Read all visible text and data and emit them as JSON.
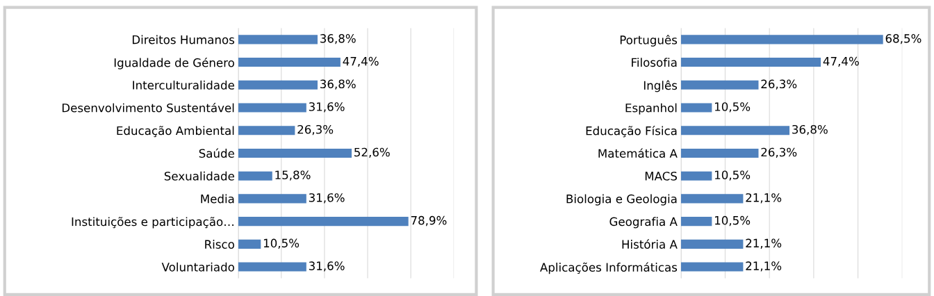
{
  "chart_data": [
    {
      "type": "bar",
      "orientation": "horizontal",
      "categories": [
        "Direitos Humanos",
        "Igualdade de Género",
        "Interculturalidade",
        "Desenvolvimento Sustentável",
        "Educação Ambiental",
        "Saúde",
        "Sexualidade",
        "Media",
        "Instituições e participação…",
        "Risco",
        "Voluntariado"
      ],
      "values": [
        36.8,
        47.4,
        36.8,
        31.6,
        26.3,
        52.6,
        15.8,
        31.6,
        78.9,
        10.5,
        31.6
      ],
      "value_labels": [
        "36,8%",
        "47,4%",
        "36,8%",
        "31,6%",
        "26,3%",
        "52,6%",
        "15,8%",
        "31,6%",
        "78,9%",
        "10,5%",
        "31,6%"
      ],
      "color": "#4f81bd",
      "xlim": [
        0,
        100
      ],
      "xticks": [
        {
          "value": 0,
          "label": null
        },
        {
          "value": 20,
          "label": null
        },
        {
          "value": 40,
          "label": null
        },
        {
          "value": 60,
          "label": null
        },
        {
          "value": 80,
          "label": null
        },
        {
          "value": 100,
          "label": null
        }
      ],
      "tick_labels": "y",
      "grid": "x"
    },
    {
      "type": "bar",
      "orientation": "horizontal",
      "categories": [
        "Português",
        "Filosofia",
        "Inglês",
        "Espanhol",
        "Educação Física",
        "Matemática A",
        "MACS",
        "Biologia e Geologia",
        "Geografia A",
        "História A",
        "Aplicações Informáticas"
      ],
      "values": [
        68.5,
        47.4,
        26.3,
        10.5,
        36.8,
        26.3,
        10.5,
        21.1,
        10.5,
        21.1,
        21.1
      ],
      "value_labels": [
        "68,5%",
        "47,4%",
        "26,3%",
        "10,5%",
        "36,8%",
        "26,3%",
        "10,5%",
        "21,1%",
        "10,5%",
        "21,1%",
        "21,1%"
      ],
      "color": "#4f81bd",
      "xlim": [
        0,
        75
      ],
      "xticks": [
        {
          "value": 0,
          "label": null
        },
        {
          "value": 15,
          "label": null
        },
        {
          "value": 30,
          "label": null
        },
        {
          "value": 45,
          "label": null
        },
        {
          "value": 60,
          "label": null
        },
        {
          "value": 75,
          "label": null
        }
      ],
      "tick_labels": "y",
      "grid": "x"
    }
  ]
}
